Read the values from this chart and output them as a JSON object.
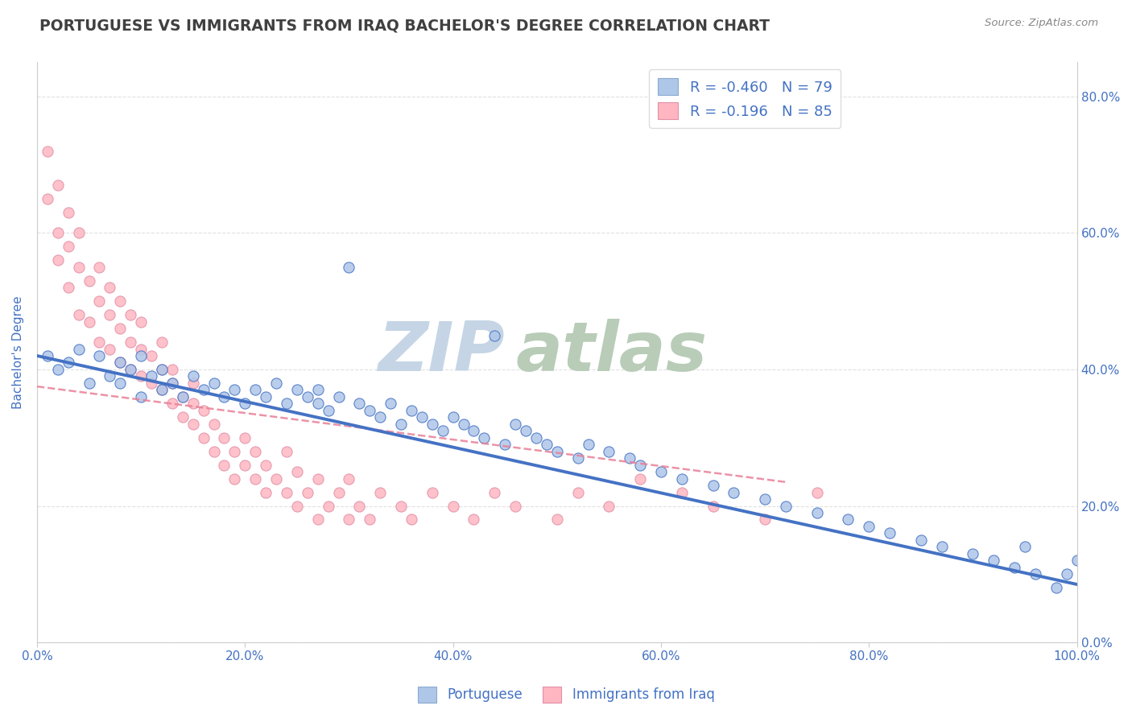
{
  "title": "PORTUGUESE VS IMMIGRANTS FROM IRAQ BACHELOR'S DEGREE CORRELATION CHART",
  "source": "Source: ZipAtlas.com",
  "ylabel": "Bachelor's Degree",
  "xlim": [
    0.0,
    1.0
  ],
  "ylim": [
    0.0,
    0.85
  ],
  "yticks": [
    0.0,
    0.2,
    0.4,
    0.6,
    0.8
  ],
  "ytick_labels": [
    "0.0%",
    "20.0%",
    "40.0%",
    "60.0%",
    "80.0%"
  ],
  "xticks": [
    0.0,
    0.2,
    0.4,
    0.6,
    0.8,
    1.0
  ],
  "xtick_labels": [
    "0.0%",
    "20.0%",
    "40.0%",
    "60.0%",
    "80.0%",
    "100.0%"
  ],
  "portuguese_color": "#AEC6E8",
  "iraq_color": "#FFB6C1",
  "portuguese_line_color": "#4472C4",
  "iraq_line_color": "#E88098",
  "R_portuguese": -0.46,
  "N_portuguese": 79,
  "R_iraq": -0.196,
  "N_iraq": 85,
  "legend_label_portuguese": "Portuguese",
  "legend_label_iraq": "Immigrants from Iraq",
  "watermark_zip": "ZIP",
  "watermark_atlas": "atlas",
  "watermark_color_zip": "#C5D5E5",
  "watermark_color_atlas": "#B8CCB8",
  "title_color": "#404040",
  "axis_label_color": "#4472C4",
  "tick_color": "#4472C4",
  "grid_color": "#CCCCCC",
  "portuguese_scatter_x": [
    0.01,
    0.02,
    0.03,
    0.04,
    0.05,
    0.06,
    0.07,
    0.08,
    0.08,
    0.09,
    0.1,
    0.1,
    0.11,
    0.12,
    0.12,
    0.13,
    0.14,
    0.15,
    0.16,
    0.17,
    0.18,
    0.19,
    0.2,
    0.21,
    0.22,
    0.23,
    0.24,
    0.25,
    0.26,
    0.27,
    0.27,
    0.28,
    0.29,
    0.3,
    0.31,
    0.32,
    0.33,
    0.34,
    0.35,
    0.36,
    0.37,
    0.38,
    0.39,
    0.4,
    0.41,
    0.42,
    0.43,
    0.44,
    0.45,
    0.46,
    0.47,
    0.48,
    0.49,
    0.5,
    0.52,
    0.53,
    0.55,
    0.57,
    0.58,
    0.6,
    0.62,
    0.65,
    0.67,
    0.7,
    0.72,
    0.75,
    0.78,
    0.8,
    0.82,
    0.85,
    0.87,
    0.9,
    0.92,
    0.94,
    0.96,
    0.98,
    0.99,
    1.0,
    0.95
  ],
  "portuguese_scatter_y": [
    0.42,
    0.4,
    0.41,
    0.43,
    0.38,
    0.42,
    0.39,
    0.41,
    0.38,
    0.4,
    0.42,
    0.36,
    0.39,
    0.37,
    0.4,
    0.38,
    0.36,
    0.39,
    0.37,
    0.38,
    0.36,
    0.37,
    0.35,
    0.37,
    0.36,
    0.38,
    0.35,
    0.37,
    0.36,
    0.35,
    0.37,
    0.34,
    0.36,
    0.55,
    0.35,
    0.34,
    0.33,
    0.35,
    0.32,
    0.34,
    0.33,
    0.32,
    0.31,
    0.33,
    0.32,
    0.31,
    0.3,
    0.45,
    0.29,
    0.32,
    0.31,
    0.3,
    0.29,
    0.28,
    0.27,
    0.29,
    0.28,
    0.27,
    0.26,
    0.25,
    0.24,
    0.23,
    0.22,
    0.21,
    0.2,
    0.19,
    0.18,
    0.17,
    0.16,
    0.15,
    0.14,
    0.13,
    0.12,
    0.11,
    0.1,
    0.08,
    0.1,
    0.12,
    0.14
  ],
  "iraq_scatter_x": [
    0.01,
    0.01,
    0.02,
    0.02,
    0.02,
    0.03,
    0.03,
    0.03,
    0.04,
    0.04,
    0.04,
    0.05,
    0.05,
    0.06,
    0.06,
    0.06,
    0.07,
    0.07,
    0.07,
    0.08,
    0.08,
    0.08,
    0.09,
    0.09,
    0.09,
    0.1,
    0.1,
    0.1,
    0.11,
    0.11,
    0.12,
    0.12,
    0.12,
    0.13,
    0.13,
    0.13,
    0.14,
    0.14,
    0.15,
    0.15,
    0.15,
    0.16,
    0.16,
    0.17,
    0.17,
    0.18,
    0.18,
    0.19,
    0.19,
    0.2,
    0.2,
    0.21,
    0.21,
    0.22,
    0.22,
    0.23,
    0.24,
    0.24,
    0.25,
    0.25,
    0.26,
    0.27,
    0.27,
    0.28,
    0.29,
    0.3,
    0.3,
    0.31,
    0.32,
    0.33,
    0.35,
    0.36,
    0.38,
    0.4,
    0.42,
    0.44,
    0.46,
    0.5,
    0.52,
    0.55,
    0.58,
    0.62,
    0.65,
    0.7,
    0.75
  ],
  "iraq_scatter_y": [
    0.72,
    0.65,
    0.67,
    0.6,
    0.56,
    0.63,
    0.58,
    0.52,
    0.6,
    0.55,
    0.48,
    0.53,
    0.47,
    0.5,
    0.55,
    0.44,
    0.48,
    0.52,
    0.43,
    0.46,
    0.5,
    0.41,
    0.44,
    0.48,
    0.4,
    0.43,
    0.47,
    0.39,
    0.42,
    0.38,
    0.4,
    0.44,
    0.37,
    0.4,
    0.35,
    0.38,
    0.36,
    0.33,
    0.35,
    0.38,
    0.32,
    0.34,
    0.3,
    0.32,
    0.28,
    0.3,
    0.26,
    0.28,
    0.24,
    0.26,
    0.3,
    0.28,
    0.24,
    0.26,
    0.22,
    0.24,
    0.28,
    0.22,
    0.25,
    0.2,
    0.22,
    0.24,
    0.18,
    0.2,
    0.22,
    0.18,
    0.24,
    0.2,
    0.18,
    0.22,
    0.2,
    0.18,
    0.22,
    0.2,
    0.18,
    0.22,
    0.2,
    0.18,
    0.22,
    0.2,
    0.24,
    0.22,
    0.2,
    0.18,
    0.22
  ]
}
